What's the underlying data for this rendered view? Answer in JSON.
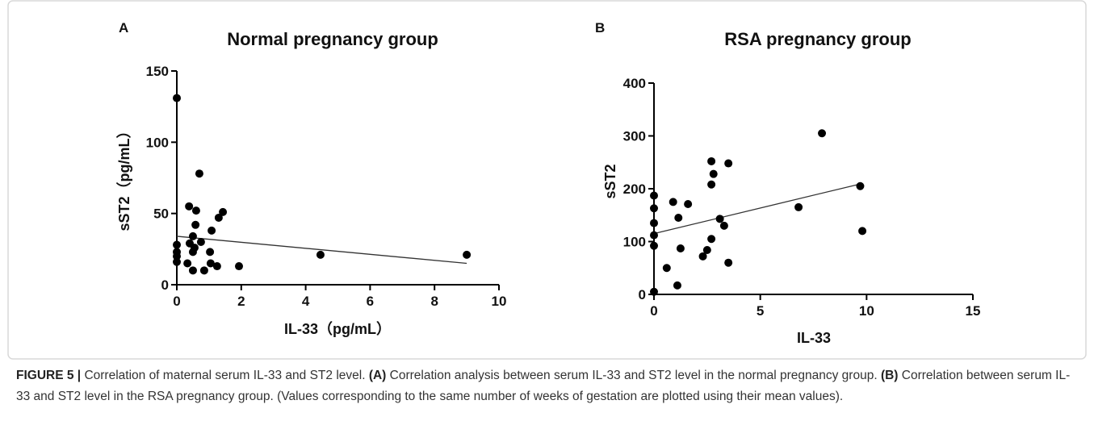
{
  "chart_data": [
    {
      "type": "scatter",
      "panel": "A",
      "title": "Normal pregnancy group",
      "x_label": "IL-33（pg/mL）",
      "y_label": "sST2（pg/mL）",
      "xlim": [
        0,
        10
      ],
      "xticks": [
        0,
        2,
        4,
        6,
        8,
        10
      ],
      "ylim": [
        0,
        150
      ],
      "yticks": [
        0,
        50,
        100,
        150
      ],
      "series": [
        {
          "color": "#000000",
          "x": [
            0,
            0,
            0,
            0,
            0,
            0.38,
            0.7,
            0.6,
            0.58,
            0.4,
            0.5,
            0.55,
            0.75,
            0.5,
            0.33,
            0.5,
            0.85,
            1.03,
            1.08,
            1.05,
            1.25,
            1.3,
            1.43,
            1.93,
            4.46,
            9.0
          ],
          "values": [
            131,
            28,
            23,
            20,
            16,
            55,
            78,
            52,
            42,
            29,
            34,
            26,
            30,
            23,
            15,
            10,
            10,
            23,
            38,
            15,
            13,
            47,
            51,
            13,
            21,
            21
          ]
        }
      ],
      "trend_line": {
        "color": "#333333",
        "x": [
          0,
          9.0
        ],
        "values": [
          34,
          15
        ]
      }
    },
    {
      "type": "scatter",
      "panel": "B",
      "title": "RSA pregnancy group",
      "x_label": "IL-33",
      "y_label": "sST2",
      "xlim": [
        0,
        15
      ],
      "xticks": [
        0,
        5,
        10,
        15
      ],
      "ylim": [
        0,
        400
      ],
      "yticks": [
        0,
        100,
        200,
        300,
        400
      ],
      "series": [
        {
          "color": "#000000",
          "x": [
            0,
            0,
            0,
            0,
            0,
            0,
            0.6,
            0.9,
            1.1,
            1.15,
            1.25,
            1.6,
            2.3,
            2.5,
            2.7,
            2.8,
            2.7,
            2.7,
            3.1,
            3.3,
            3.5,
            3.5,
            6.8,
            7.9,
            9.7,
            9.8
          ],
          "values": [
            187,
            163,
            135,
            112,
            92,
            5,
            50,
            175,
            17,
            145,
            87,
            171,
            72,
            84,
            252,
            228,
            208,
            105,
            143,
            130,
            248,
            60,
            165,
            305,
            205,
            120
          ]
        }
      ],
      "trend_line": {
        "color": "#333333",
        "x": [
          0,
          9.8
        ],
        "values": [
          115,
          210
        ]
      }
    }
  ],
  "caption": [
    {
      "text": "FIGURE 5 |",
      "bold": true
    },
    {
      "text": " Correlation of maternal serum IL-33 and ST2 level. ",
      "bold": false
    },
    {
      "text": "(A)",
      "bold": true
    },
    {
      "text": " Correlation analysis between serum IL-33 and ST2 level in the normal pregnancy group. ",
      "bold": false
    },
    {
      "text": "(B)",
      "bold": true
    },
    {
      "text": " Correlation between serum IL-33 and ST2 level in the RSA pregnancy group. (Values corresponding to the same number of weeks of gestation are plotted using their mean values).",
      "bold": false
    }
  ]
}
